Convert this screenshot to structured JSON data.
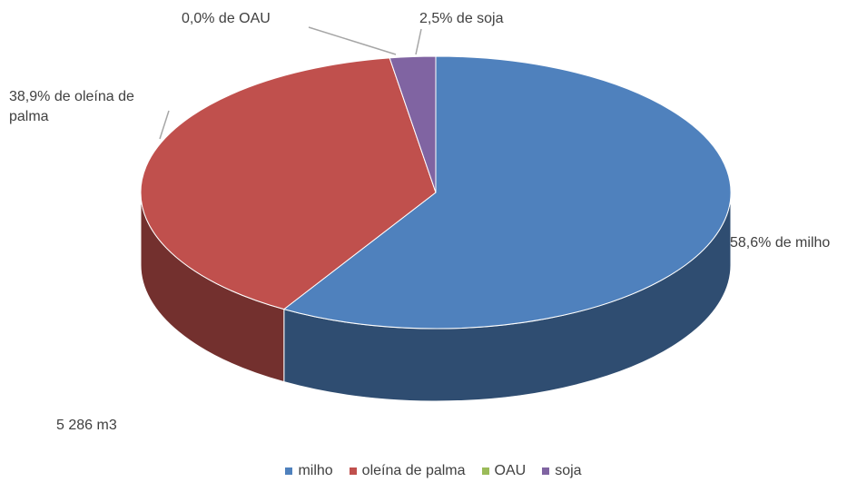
{
  "chart_data": {
    "type": "pie3d",
    "categories": [
      "milho",
      "oleína de palma",
      "OAU",
      "soja"
    ],
    "values": [
      58.6,
      38.9,
      0.0,
      2.5
    ],
    "value_labels": [
      "58,6% de milho",
      "38,9% de oleína de palma",
      "0,0% de OAU",
      "2,5% de soja"
    ],
    "colors": [
      "#4f81bd",
      "#c0504d",
      "#9bbb59",
      "#8064a2"
    ],
    "annotation": "5 286 m3",
    "legend": "bottom"
  }
}
